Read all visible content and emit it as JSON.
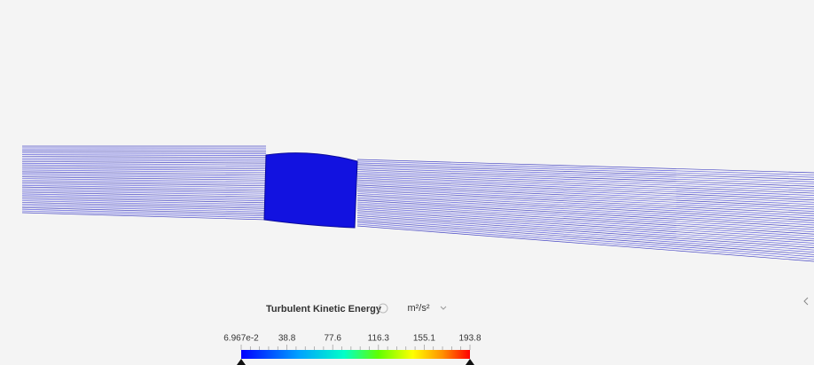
{
  "legend": {
    "title": "Turbulent Kinetic Energy",
    "unit": "m²/s²",
    "ticks": [
      "6.967e-2",
      "38.8",
      "77.6",
      "116.3",
      "155.1",
      "193.8"
    ]
  }
}
